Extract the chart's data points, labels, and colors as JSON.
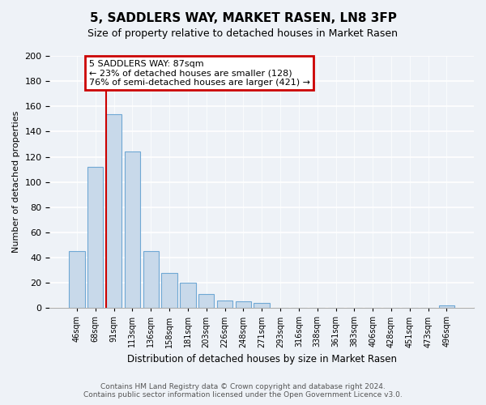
{
  "title": "5, SADDLERS WAY, MARKET RASEN, LN8 3FP",
  "subtitle": "Size of property relative to detached houses in Market Rasen",
  "xlabel": "Distribution of detached houses by size in Market Rasen",
  "ylabel": "Number of detached properties",
  "footer_line1": "Contains HM Land Registry data © Crown copyright and database right 2024.",
  "footer_line2": "Contains public sector information licensed under the Open Government Licence v3.0.",
  "bar_labels": [
    "46sqm",
    "68sqm",
    "91sqm",
    "113sqm",
    "136sqm",
    "158sqm",
    "181sqm",
    "203sqm",
    "226sqm",
    "248sqm",
    "271sqm",
    "293sqm",
    "316sqm",
    "338sqm",
    "361sqm",
    "383sqm",
    "406sqm",
    "428sqm",
    "451sqm",
    "473sqm",
    "496sqm"
  ],
  "bar_values": [
    45,
    112,
    154,
    124,
    45,
    28,
    20,
    11,
    6,
    5,
    4,
    0,
    0,
    0,
    0,
    0,
    0,
    0,
    0,
    0,
    2
  ],
  "bar_color": "#c8d9ea",
  "bar_edge_color": "#6fa8d4",
  "property_line_index": 2,
  "property_line_color": "#cc0000",
  "ylim": [
    0,
    200
  ],
  "yticks": [
    0,
    20,
    40,
    60,
    80,
    100,
    120,
    140,
    160,
    180,
    200
  ],
  "annotation_title": "5 SADDLERS WAY: 87sqm",
  "annotation_line1": "← 23% of detached houses are smaller (128)",
  "annotation_line2": "76% of semi-detached houses are larger (421) →",
  "annotation_box_color": "#ffffff",
  "annotation_box_edge": "#cc0000",
  "bg_color": "#eef2f7",
  "grid_color": "#ffffff",
  "title_fontsize": 11,
  "subtitle_fontsize": 9
}
